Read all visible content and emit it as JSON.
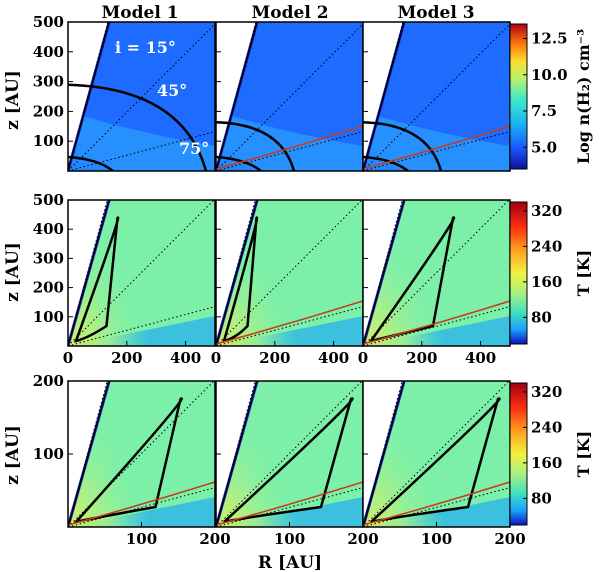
{
  "figure": {
    "column_titles": [
      "Model 1",
      "Model 2",
      "Model 3"
    ],
    "annotations": [
      "i = 15°",
      "45°",
      "75°"
    ]
  },
  "chart_data": [
    {
      "type": "heatmap",
      "row": 1,
      "quantity": "Log n(H2) cm^-3",
      "colorbar_label": "Log n(H₂) cm⁻³",
      "colorbar_ticks": [
        "12.5",
        "10.0",
        "7.5",
        "5.0"
      ],
      "colorbar_values": [
        12.5,
        10.0,
        7.5,
        5.0
      ],
      "colorbar_range": [
        3.5,
        13.5
      ],
      "ylabel": "z [AU]",
      "ylim": [
        0,
        500
      ],
      "yticks": [
        "500",
        "400",
        "300",
        "200",
        "100"
      ],
      "xlim": [
        0,
        500
      ],
      "panels": [
        "Model 1",
        "Model 2",
        "Model 3"
      ]
    },
    {
      "type": "heatmap",
      "row": 2,
      "quantity": "T [K]",
      "colorbar_label": "T [K]",
      "colorbar_ticks": [
        "320",
        "240",
        "160",
        "80"
      ],
      "colorbar_values": [
        320,
        240,
        160,
        80
      ],
      "colorbar_range": [
        20,
        340
      ],
      "ylabel": "z [AU]",
      "ylim": [
        0,
        500
      ],
      "yticks": [
        "500",
        "400",
        "300",
        "200",
        "100"
      ],
      "xlim": [
        0,
        500
      ],
      "xticks": [
        "0",
        "200",
        "400"
      ],
      "panels": [
        "Model 1",
        "Model 2",
        "Model 3"
      ]
    },
    {
      "type": "heatmap",
      "row": 3,
      "quantity": "T [K]",
      "colorbar_label": "T [K]",
      "colorbar_ticks": [
        "320",
        "240",
        "160",
        "80"
      ],
      "colorbar_values": [
        320,
        240,
        160,
        80
      ],
      "colorbar_range": [
        20,
        340
      ],
      "ylabel": "z [AU]",
      "ylim": [
        0,
        200
      ],
      "yticks": [
        "200",
        "100"
      ],
      "xlim": [
        0,
        200
      ],
      "xticks": [
        "100",
        "200"
      ],
      "xlabel": "R [AU]",
      "panels": [
        "Model 1",
        "Model 2",
        "Model 3"
      ]
    }
  ],
  "colors": {
    "density_bg": "#1e6bff",
    "temp_bg": "#7cf0a8",
    "contour": "#000000",
    "red_contour": "#c83a1a"
  }
}
